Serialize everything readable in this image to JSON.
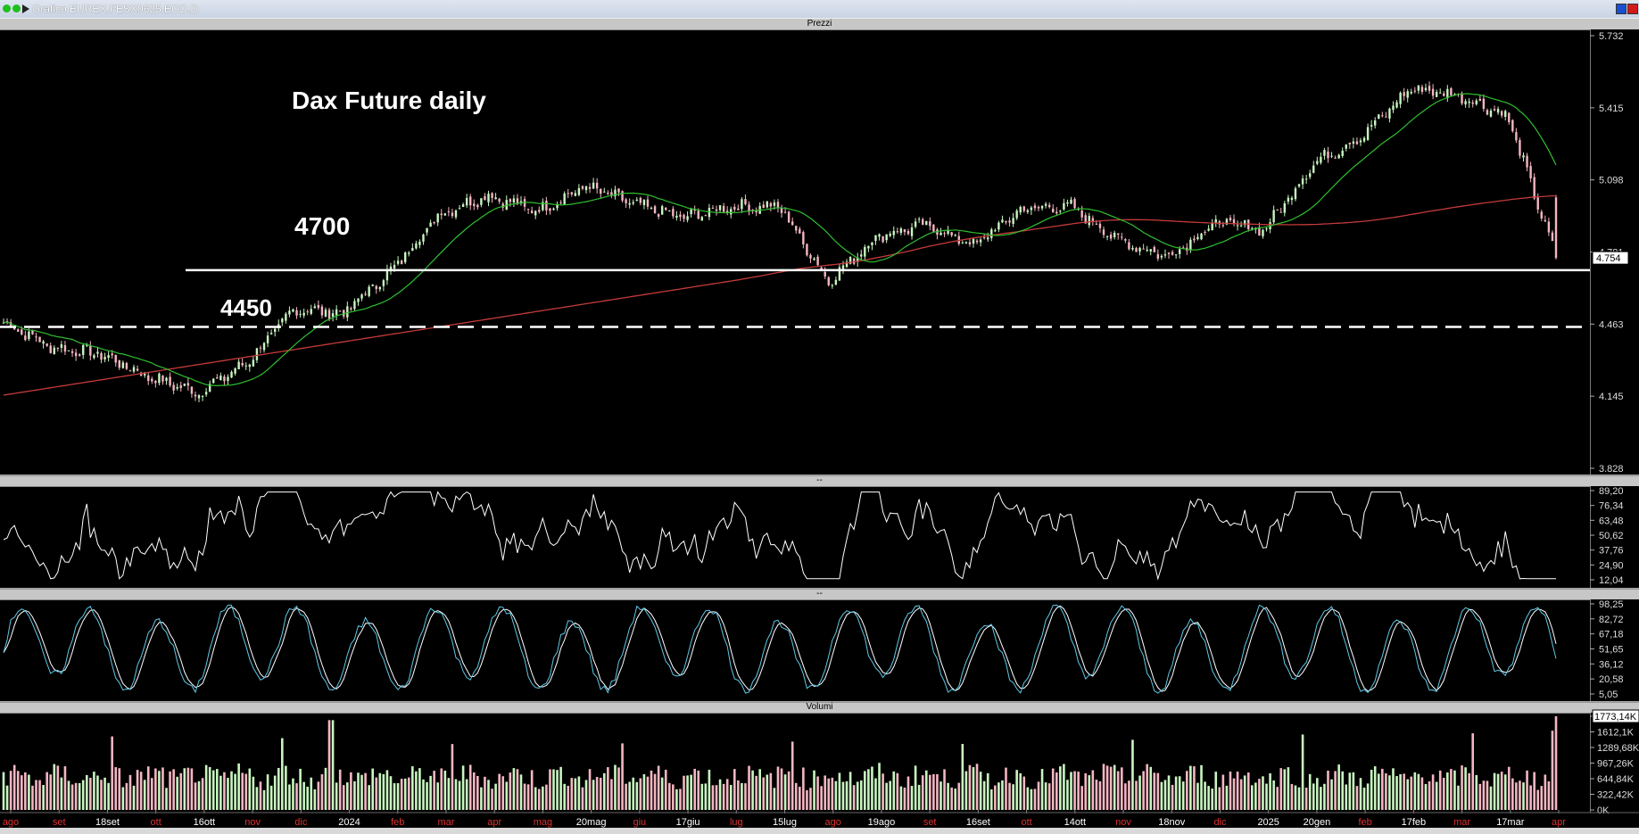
{
  "window": {
    "title": "Grafico EUREX.FESX0625.EOD.D"
  },
  "panels": {
    "price": "Prezzi",
    "osc1": "--",
    "osc2": "--",
    "volume": "Volumi"
  },
  "annotations": {
    "title": "Dax Future daily",
    "level_4700": "4700",
    "level_4450": "4450",
    "last_price": "4.754"
  },
  "colors": {
    "bull_candle": "#c8f5c0",
    "bear_candle": "#f4b6c2",
    "ma_fast": "#2fbf2f",
    "ma_slow": "#c43a3a",
    "oscillator": "#ffffff",
    "stoch_k": "#5ec9e8",
    "stoch_d": "#ffffff"
  },
  "chart_data": [
    {
      "type": "line",
      "name": "Prezzi",
      "ylim": [
        3828,
        5732
      ],
      "yticks": [
        "5.732",
        "5.415",
        "5.098",
        "4.781",
        "4.463",
        "4.145",
        "3.828"
      ],
      "horizontal_lines": [
        4700,
        4450
      ],
      "x_tick_labels": [
        "ago",
        "set",
        "18set",
        "ott",
        "16ott",
        "nov",
        "dic",
        "2024",
        "feb",
        "mar",
        "apr",
        "mag",
        "20mag",
        "giu",
        "17giu",
        "lug",
        "15lug",
        "ago",
        "19ago",
        "set",
        "16set",
        "ott",
        "14ott",
        "nov",
        "18nov",
        "dic",
        "2025",
        "20gen",
        "feb",
        "17feb",
        "mar",
        "17mar",
        "apr"
      ],
      "close_keypoints": [
        {
          "label": "ago",
          "value": 4470
        },
        {
          "label": "set",
          "value": 4360
        },
        {
          "label": "18set",
          "value": 4330
        },
        {
          "label": "ott",
          "value": 4230
        },
        {
          "label": "16ott",
          "value": 4160
        },
        {
          "label": "nov",
          "value": 4290
        },
        {
          "label": "dic",
          "value": 4530
        },
        {
          "label": "2024",
          "value": 4510
        },
        {
          "label": "feb",
          "value": 4700
        },
        {
          "label": "mar",
          "value": 4950
        },
        {
          "label": "apr",
          "value": 5030
        },
        {
          "label": "mag",
          "value": 4960
        },
        {
          "label": "20mag",
          "value": 5070
        },
        {
          "label": "giu",
          "value": 4990
        },
        {
          "label": "17giu",
          "value": 4930
        },
        {
          "label": "lug",
          "value": 4980
        },
        {
          "label": "15lug",
          "value": 4980
        },
        {
          "label": "ago",
          "value": 4650
        },
        {
          "label": "19ago",
          "value": 4850
        },
        {
          "label": "set",
          "value": 4900
        },
        {
          "label": "16set",
          "value": 4810
        },
        {
          "label": "ott",
          "value": 4970
        },
        {
          "label": "14ott",
          "value": 4980
        },
        {
          "label": "nov",
          "value": 4830
        },
        {
          "label": "18nov",
          "value": 4760
        },
        {
          "label": "dic",
          "value": 4910
        },
        {
          "label": "2025",
          "value": 4880
        },
        {
          "label": "20gen",
          "value": 5170
        },
        {
          "label": "feb",
          "value": 5290
        },
        {
          "label": "17feb",
          "value": 5500
        },
        {
          "label": "mar",
          "value": 5470
        },
        {
          "label": "17mar",
          "value": 5380
        },
        {
          "label": "apr",
          "value": 4754
        }
      ],
      "series": [
        {
          "name": "ma_fast"
        },
        {
          "name": "ma_slow"
        }
      ]
    },
    {
      "type": "line",
      "name": "oscillator",
      "ylim": [
        12.04,
        89.2
      ],
      "yticks": [
        "89,20",
        "76,34",
        "63,48",
        "50,62",
        "37,76",
        "24,90",
        "12,04"
      ]
    },
    {
      "type": "line",
      "name": "stochastic",
      "ylim": [
        5.05,
        98.25
      ],
      "yticks": [
        "98,25",
        "82,72",
        "67,18",
        "51,65",
        "36,12",
        "20,58",
        "5,05"
      ]
    },
    {
      "type": "bar",
      "name": "Volumi",
      "ylim": [
        0,
        1773.14
      ],
      "yticks": [
        "1773,14K",
        "1612,1K",
        "1289,68K",
        "967,26K",
        "644,84K",
        "322,42K",
        "0K"
      ],
      "max_bar_label": "1773,14K"
    }
  ]
}
